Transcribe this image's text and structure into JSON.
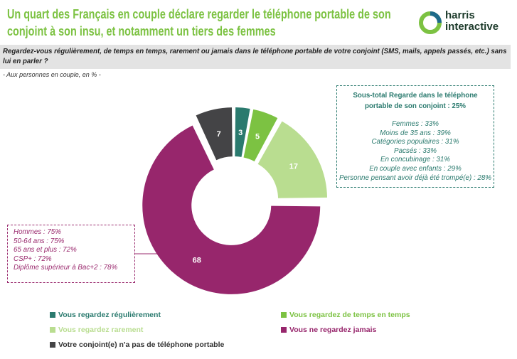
{
  "title": "Un quart des Français en couple déclare regarder le téléphone portable de son conjoint à son insu, et notamment un tiers des femmes",
  "logo": {
    "line1": "harris",
    "line2": "interactive"
  },
  "question": "Regardez-vous régulièrement, de temps en temps, rarement ou jamais dans le téléphone portable de votre conjoint (SMS, mails, appels passés, etc.) sans lui en parler ?",
  "base": "- Aux personnes en couple, en % -",
  "subtotal": {
    "heading": "Sous-total Regarde dans le téléphone portable de son conjoint : 25%",
    "lines": [
      "Femmes : 33%",
      "Moins de 35 ans : 39%",
      "Catégories populaires : 31%",
      "Pacsés : 33%",
      "En concubinage : 31%",
      "En couple avec enfants : 29%",
      "Personne pensant avoir déjà été trompé(e) : 28%"
    ]
  },
  "never_box": {
    "lines": [
      "Hommes : 75%",
      "50-64 ans : 75%",
      "65 ans et plus : 72%",
      "CSP+ : 72%",
      "Diplôme supérieur à Bac+2 : 78%"
    ]
  },
  "chart_data": {
    "type": "pie",
    "donut": true,
    "unit": "%",
    "slices": [
      {
        "label": "Vous regardez régulièrement",
        "value": 3,
        "color": "#2a7a6e"
      },
      {
        "label": "Vous regardez de temps en temps",
        "value": 5,
        "color": "#7cc242"
      },
      {
        "label": "Vous regardez rarement",
        "value": 17,
        "color": "#b9dd90"
      },
      {
        "label": "Vous ne regardez jamais",
        "value": 68,
        "color": "#97266c"
      },
      {
        "label": "Votre conjoint(e) n'a pas de téléphone portable",
        "value": 7,
        "color": "#444446"
      }
    ]
  }
}
